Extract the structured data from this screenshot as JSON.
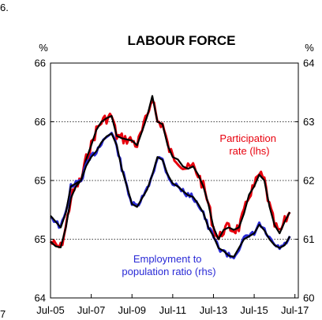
{
  "page": {
    "figure_number": "6.",
    "corner_mark": "7"
  },
  "chart_data": {
    "type": "line",
    "title": "LABOUR FORCE",
    "y_left": {
      "unit": "%",
      "range": [
        64,
        66
      ],
      "ticks": [
        {
          "value": 64,
          "label": "64"
        },
        {
          "value": 64.5,
          "label": "65"
        },
        {
          "value": 65,
          "label": "65"
        },
        {
          "value": 65.5,
          "label": "66"
        },
        {
          "value": 66,
          "label": "66"
        }
      ]
    },
    "y_right": {
      "unit": "%",
      "range": [
        60,
        64
      ],
      "ticks": [
        {
          "value": 60,
          "label": "60"
        },
        {
          "value": 61,
          "label": "61"
        },
        {
          "value": 62,
          "label": "62"
        },
        {
          "value": 63,
          "label": "63"
        },
        {
          "value": 64,
          "label": "64"
        }
      ]
    },
    "x_axis": {
      "range": [
        "2005-07",
        "2017-09"
      ],
      "ticks": [
        {
          "date": "2005-07",
          "label": "Jul-05"
        },
        {
          "date": "2007-07",
          "label": "Jul-07"
        },
        {
          "date": "2009-07",
          "label": "Jul-09"
        },
        {
          "date": "2011-07",
          "label": "Jul-11"
        },
        {
          "date": "2013-07",
          "label": "Jul-13"
        },
        {
          "date": "2015-07",
          "label": "Jul-15"
        },
        {
          "date": "2017-07",
          "label": "Jul-17"
        }
      ]
    },
    "gridlines": [
      64.5,
      65,
      65.5
    ],
    "series": [
      {
        "id": "participation",
        "axis": "left",
        "color": "#e8000d",
        "trend_color": "#000000",
        "annotation": [
          "Participation",
          "rate (lhs)"
        ],
        "points": [
          [
            "2005-07",
            64.48
          ],
          [
            "2005-10",
            64.44
          ],
          [
            "2006-01",
            64.43
          ],
          [
            "2006-04",
            64.6
          ],
          [
            "2006-07",
            64.85
          ],
          [
            "2006-10",
            64.95
          ],
          [
            "2007-01",
            65.0
          ],
          [
            "2007-04",
            65.18
          ],
          [
            "2007-07",
            65.3
          ],
          [
            "2007-10",
            65.43
          ],
          [
            "2008-01",
            65.5
          ],
          [
            "2008-04",
            65.53
          ],
          [
            "2008-07",
            65.55
          ],
          [
            "2008-10",
            65.38
          ],
          [
            "2009-01",
            65.36
          ],
          [
            "2009-04",
            65.35
          ],
          [
            "2009-07",
            65.34
          ],
          [
            "2009-10",
            65.3
          ],
          [
            "2010-01",
            65.42
          ],
          [
            "2010-04",
            65.55
          ],
          [
            "2010-07",
            65.72
          ],
          [
            "2010-10",
            65.5
          ],
          [
            "2011-01",
            65.48
          ],
          [
            "2011-04",
            65.3
          ],
          [
            "2011-07",
            65.2
          ],
          [
            "2011-10",
            65.18
          ],
          [
            "2012-01",
            65.12
          ],
          [
            "2012-04",
            65.1
          ],
          [
            "2012-07",
            65.12
          ],
          [
            "2012-10",
            65.05
          ],
          [
            "2013-01",
            64.95
          ],
          [
            "2013-04",
            64.8
          ],
          [
            "2013-07",
            64.6
          ],
          [
            "2013-10",
            64.5
          ],
          [
            "2014-01",
            64.58
          ],
          [
            "2014-04",
            64.6
          ],
          [
            "2014-07",
            64.58
          ],
          [
            "2014-10",
            64.6
          ],
          [
            "2015-01",
            64.72
          ],
          [
            "2015-04",
            64.88
          ],
          [
            "2015-07",
            64.95
          ],
          [
            "2015-10",
            65.05
          ],
          [
            "2016-01",
            65.0
          ],
          [
            "2016-04",
            64.78
          ],
          [
            "2016-07",
            64.62
          ],
          [
            "2016-10",
            64.55
          ],
          [
            "2017-01",
            64.65
          ],
          [
            "2017-04",
            64.73
          ]
        ]
      },
      {
        "id": "employment",
        "axis": "right",
        "color": "#2a2ad6",
        "trend_color": "#000000",
        "annotation": [
          "Employment to",
          "population ratio (rhs)"
        ],
        "points": [
          [
            "2005-07",
            61.4
          ],
          [
            "2005-10",
            61.3
          ],
          [
            "2006-01",
            61.2
          ],
          [
            "2006-04",
            61.45
          ],
          [
            "2006-07",
            61.9
          ],
          [
            "2006-10",
            61.95
          ],
          [
            "2007-01",
            62.0
          ],
          [
            "2007-04",
            62.25
          ],
          [
            "2007-07",
            62.4
          ],
          [
            "2007-10",
            62.5
          ],
          [
            "2008-01",
            62.65
          ],
          [
            "2008-04",
            62.75
          ],
          [
            "2008-07",
            62.8
          ],
          [
            "2008-10",
            62.6
          ],
          [
            "2009-01",
            62.2
          ],
          [
            "2009-04",
            61.9
          ],
          [
            "2009-07",
            61.6
          ],
          [
            "2009-10",
            61.55
          ],
          [
            "2010-01",
            61.7
          ],
          [
            "2010-04",
            61.85
          ],
          [
            "2010-07",
            62.1
          ],
          [
            "2010-10",
            62.4
          ],
          [
            "2011-01",
            62.35
          ],
          [
            "2011-04",
            62.1
          ],
          [
            "2011-07",
            61.95
          ],
          [
            "2011-10",
            61.9
          ],
          [
            "2012-01",
            61.82
          ],
          [
            "2012-04",
            61.75
          ],
          [
            "2012-07",
            61.72
          ],
          [
            "2012-10",
            61.6
          ],
          [
            "2013-01",
            61.45
          ],
          [
            "2013-04",
            61.2
          ],
          [
            "2013-07",
            61.05
          ],
          [
            "2013-10",
            60.85
          ],
          [
            "2014-01",
            60.8
          ],
          [
            "2014-04",
            60.72
          ],
          [
            "2014-07",
            60.7
          ],
          [
            "2014-10",
            60.85
          ],
          [
            "2015-01",
            61.0
          ],
          [
            "2015-04",
            61.05
          ],
          [
            "2015-07",
            61.1
          ],
          [
            "2015-10",
            61.25
          ],
          [
            "2016-01",
            61.15
          ],
          [
            "2016-04",
            61.0
          ],
          [
            "2016-07",
            60.9
          ],
          [
            "2016-10",
            60.85
          ],
          [
            "2017-01",
            60.9
          ],
          [
            "2017-04",
            61.05
          ]
        ]
      }
    ]
  }
}
